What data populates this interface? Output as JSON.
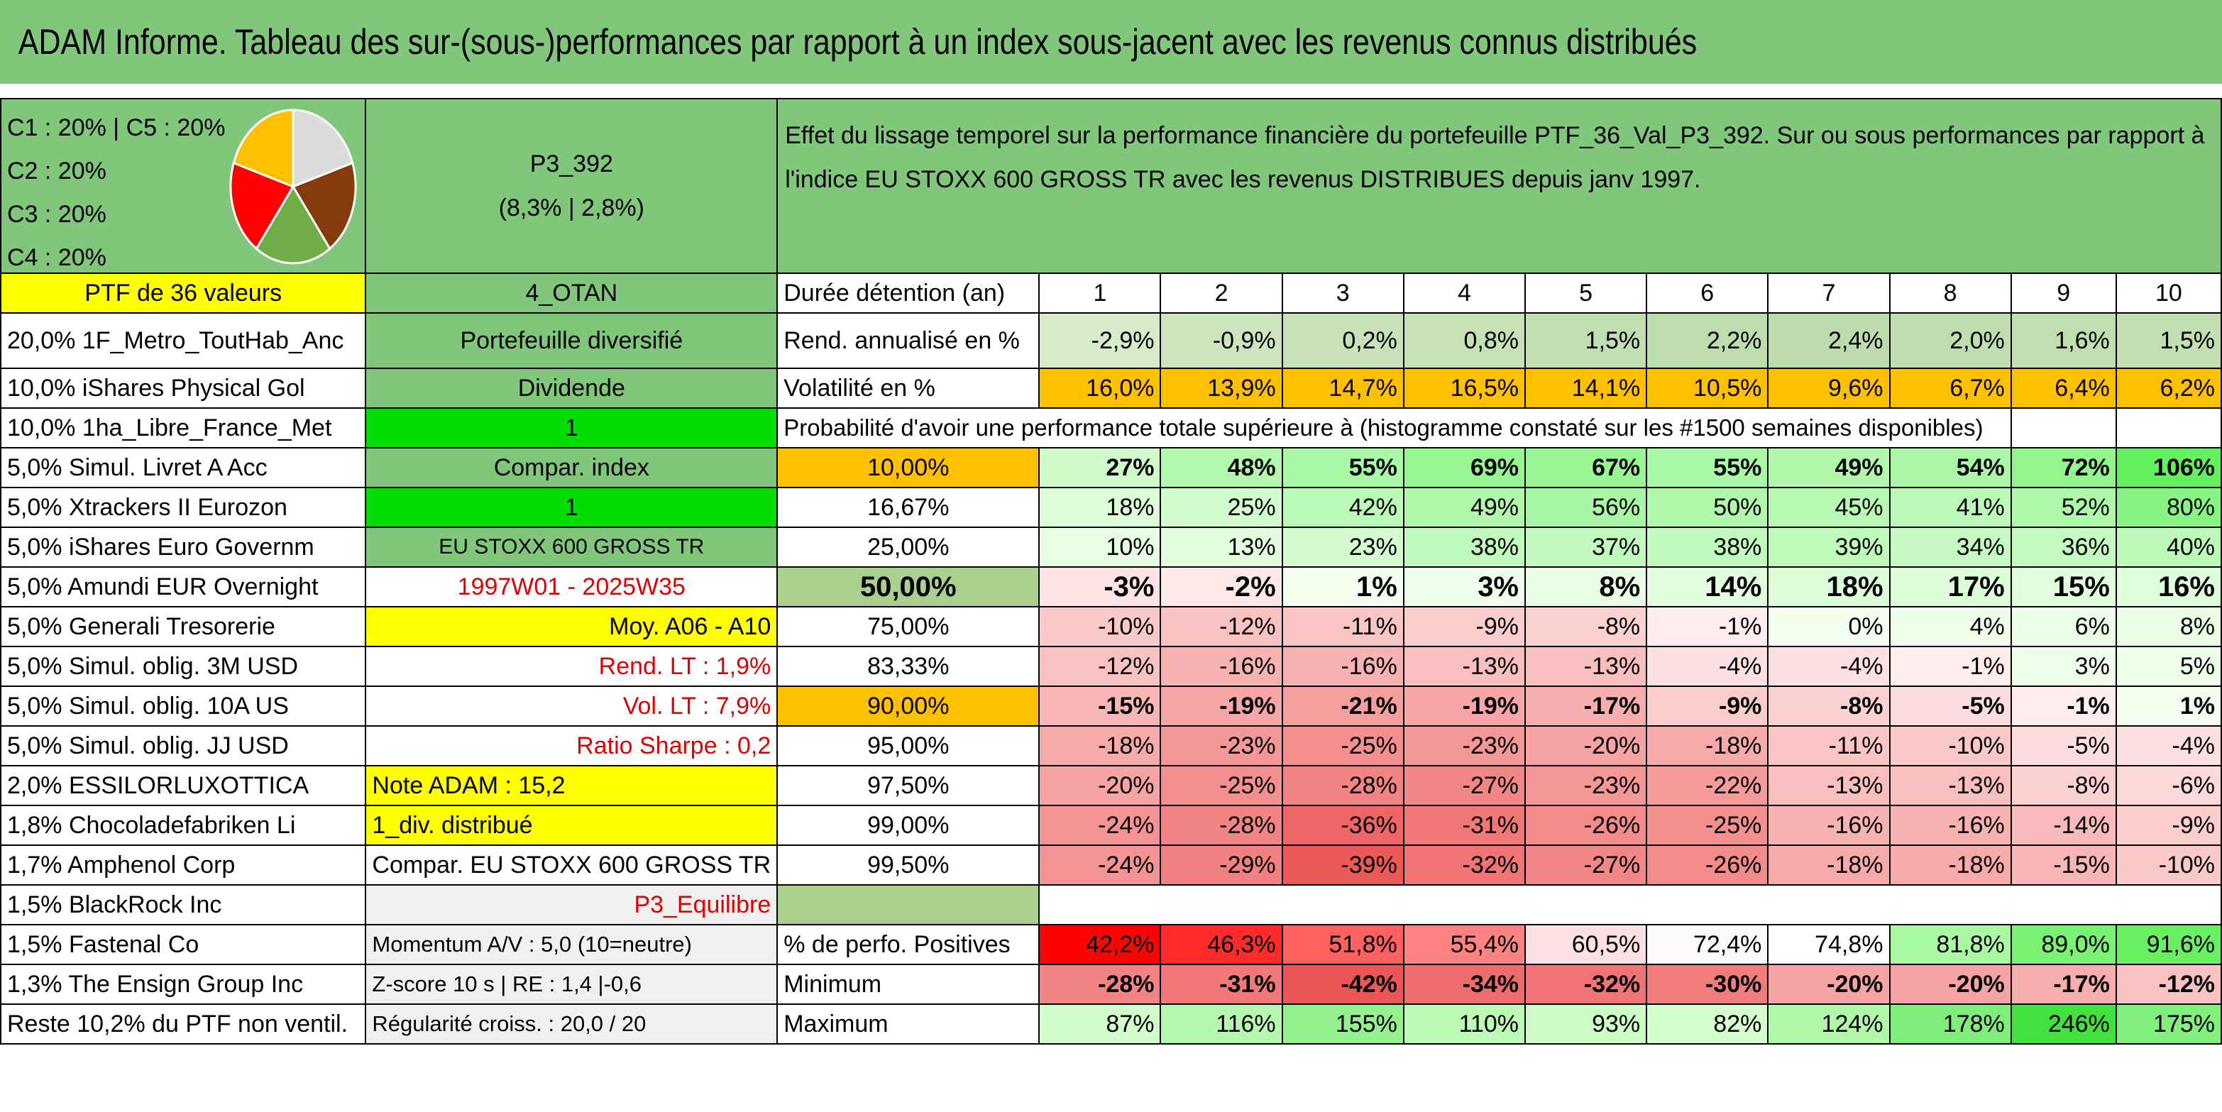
{
  "title": "ADAM Informe. Tableau des sur-(sous-)performances par rapport à un index sous-jacent avec les revenus connus distribués",
  "pie": {
    "labels": [
      "C1 : 20% | C5 : 20%",
      "C2 : 20%",
      "C3 : 20%",
      "C4 : 20%"
    ],
    "colors": [
      "#dcdcdc",
      "#843c0c",
      "#70ad47",
      "#ff0000",
      "#ffc000"
    ]
  },
  "portfolio": {
    "name": "P3_392",
    "perf": "(8,3% | 2,8%)",
    "description": "Effet du lissage temporel sur la performance financière du portefeuille PTF_36_Val_P3_392. Sur ou sous performances par rapport à l'indice EU STOXX 600 GROSS TR avec les revenus DISTRIBUES depuis janv 1997."
  },
  "left_col": [
    "PTF de 36 valeurs",
    "20,0% 1F_Metro_ToutHab_Anc",
    "10,0% iShares Physical Gol",
    "10,0% 1ha_Libre_France_Met",
    "5,0% Simul. Livret A Acc",
    "5,0% Xtrackers II Eurozon",
    "5,0% iShares Euro Governm",
    "5,0% Amundi EUR Overnight",
    "5,0% Generali Tresorerie",
    "5,0% Simul. oblig. 3M USD",
    "5,0% Simul. oblig. 10A US",
    "5,0% Simul. oblig. JJ USD",
    "2,0% ESSILORLUXOTTICA",
    "1,8% Chocoladefabriken Li",
    "1,7% Amphenol Corp",
    "1,5% BlackRock Inc",
    "1,5% Fastenal Co",
    "1,3% The Ensign Group Inc",
    "Reste 10,2% du PTF non ventil."
  ],
  "mid_col": [
    "4_OTAN",
    "Portefeuille diversifié",
    "Dividende",
    "1",
    "Compar. index",
    "1",
    "EU STOXX 600 GROSS TR",
    "1997W01 - 2025W35",
    "Moy. A06 - A10",
    "Rend. LT : 1,9%",
    "Vol. LT : 7,9%",
    "Ratio Sharpe : 0,2",
    "Note ADAM : 15,2",
    "1_div. distribué",
    "Compar. EU STOXX 600 GROSS TR",
    "P3_Equilibre",
    "Momentum A/V : 5,0 (10=neutre)",
    "Z-score 10 s | RE : 1,4 |-0,6",
    "Régularité croiss. : 20,0 / 20"
  ],
  "labels": {
    "duration": "Durée détention (an)",
    "return": "Rend. annualisé en %",
    "volatility": "Volatilité en %",
    "probability": "Probabilité d'avoir une performance totale supérieure à (histogramme constaté sur les #1500 semaines disponibles)",
    "positive": "% de perfo. Positives",
    "minimum": "Minimum",
    "maximum": "Maximum"
  },
  "years": [
    "1",
    "2",
    "3",
    "4",
    "5",
    "6",
    "7",
    "8",
    "9",
    "10"
  ],
  "returns": [
    "-2,9%",
    "-0,9%",
    "0,2%",
    "0,8%",
    "1,5%",
    "2,2%",
    "2,4%",
    "2,0%",
    "1,6%",
    "1,5%"
  ],
  "volatility": [
    "16,0%",
    "13,9%",
    "14,7%",
    "16,5%",
    "14,1%",
    "10,5%",
    "9,6%",
    "6,7%",
    "6,4%",
    "6,2%"
  ],
  "percentiles": [
    {
      "p": "10,00%",
      "v": [
        "27%",
        "48%",
        "55%",
        "69%",
        "67%",
        "55%",
        "49%",
        "54%",
        "72%",
        "106%"
      ]
    },
    {
      "p": "16,67%",
      "v": [
        "18%",
        "25%",
        "42%",
        "49%",
        "56%",
        "50%",
        "45%",
        "41%",
        "52%",
        "80%"
      ]
    },
    {
      "p": "25,00%",
      "v": [
        "10%",
        "13%",
        "23%",
        "38%",
        "37%",
        "38%",
        "39%",
        "34%",
        "36%",
        "40%"
      ]
    },
    {
      "p": "50,00%",
      "v": [
        "-3%",
        "-2%",
        "1%",
        "3%",
        "8%",
        "14%",
        "18%",
        "17%",
        "15%",
        "16%"
      ]
    },
    {
      "p": "75,00%",
      "v": [
        "-10%",
        "-12%",
        "-11%",
        "-9%",
        "-8%",
        "-1%",
        "0%",
        "4%",
        "6%",
        "8%"
      ]
    },
    {
      "p": "83,33%",
      "v": [
        "-12%",
        "-16%",
        "-16%",
        "-13%",
        "-13%",
        "-4%",
        "-4%",
        "-1%",
        "3%",
        "5%"
      ]
    },
    {
      "p": "90,00%",
      "v": [
        "-15%",
        "-19%",
        "-21%",
        "-19%",
        "-17%",
        "-9%",
        "-8%",
        "-5%",
        "-1%",
        "1%"
      ]
    },
    {
      "p": "95,00%",
      "v": [
        "-18%",
        "-23%",
        "-25%",
        "-23%",
        "-20%",
        "-18%",
        "-11%",
        "-10%",
        "-5%",
        "-4%"
      ]
    },
    {
      "p": "97,50%",
      "v": [
        "-20%",
        "-25%",
        "-28%",
        "-27%",
        "-23%",
        "-22%",
        "-13%",
        "-13%",
        "-8%",
        "-6%"
      ]
    },
    {
      "p": "99,00%",
      "v": [
        "-24%",
        "-28%",
        "-36%",
        "-31%",
        "-26%",
        "-25%",
        "-16%",
        "-16%",
        "-14%",
        "-9%"
      ]
    },
    {
      "p": "99,50%",
      "v": [
        "-24%",
        "-29%",
        "-39%",
        "-32%",
        "-27%",
        "-26%",
        "-18%",
        "-18%",
        "-15%",
        "-10%"
      ]
    }
  ],
  "positives": [
    "42,2%",
    "46,3%",
    "51,8%",
    "55,4%",
    "60,5%",
    "72,4%",
    "74,8%",
    "81,8%",
    "89,0%",
    "91,6%"
  ],
  "minimum": [
    "-28%",
    "-31%",
    "-42%",
    "-34%",
    "-32%",
    "-30%",
    "-20%",
    "-20%",
    "-17%",
    "-12%"
  ],
  "maximum": [
    "87%",
    "116%",
    "155%",
    "110%",
    "93%",
    "82%",
    "124%",
    "178%",
    "246%",
    "175%"
  ],
  "colors": {
    "title_bg": "#80c77c",
    "yellow": "#ffff00",
    "bright_green": "#00dd00",
    "orange": "#ffc000",
    "red_text": "#e00000"
  }
}
